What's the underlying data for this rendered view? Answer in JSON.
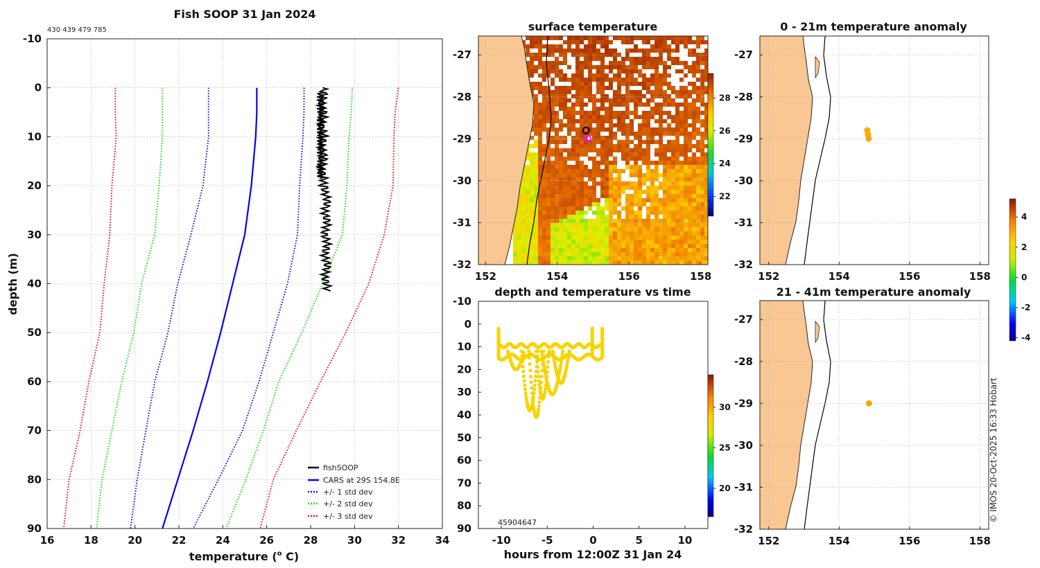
{
  "colors": {
    "cars": "#0000ee",
    "std1": "#1010ee",
    "std2": "#22dd22",
    "std3": "#ee1111",
    "fishsoop": "#000000",
    "land": "#f9c794",
    "anomaly_dot": "#f08c10",
    "time_dots": "#f7d400",
    "grid": "#bbbbbb"
  },
  "figure": {
    "title": "Fish SOOP 31 Jan 2024",
    "ids_text": "430 439 479 785",
    "credit": "© IMOS 20-Oct-2025 16:33 Hobart"
  },
  "chart_data": [
    {
      "id": "profile",
      "type": "line",
      "title": "Fish SOOP 31 Jan 2024",
      "xlabel_pre": "temperature (",
      "xlabel_sup": "o",
      "xlabel_post": " C)",
      "ylabel": "depth (m)",
      "xlim": [
        16,
        34
      ],
      "ylim": [
        -10,
        90
      ],
      "xticks": [
        16,
        18,
        20,
        22,
        24,
        26,
        28,
        30,
        32,
        34
      ],
      "yticks": [
        -10,
        0,
        10,
        20,
        30,
        40,
        50,
        60,
        70,
        80,
        90
      ],
      "depth": [
        0,
        5,
        10,
        20,
        30,
        40,
        50,
        60,
        70,
        80,
        90
      ],
      "series": [
        {
          "name": "CARS at 29S 154.8E",
          "style": "solid",
          "color": "#0000ee",
          "values": [
            25.55,
            25.55,
            25.5,
            25.3,
            25.0,
            24.45,
            23.9,
            23.3,
            22.65,
            21.95,
            21.25
          ]
        },
        {
          "name": "+/- 1 std dev",
          "style": "dotted",
          "color": "#1010ee",
          "values": [
            23.35,
            23.35,
            23.35,
            23.1,
            22.55,
            21.95,
            21.5,
            20.9,
            20.5,
            20.1,
            19.8
          ]
        },
        {
          "name": "+/- 1 std dev",
          "style": "dotted",
          "color": "#1010ee",
          "values": [
            27.7,
            27.7,
            27.65,
            27.5,
            27.4,
            26.95,
            26.3,
            25.65,
            24.9,
            23.8,
            22.65
          ]
        },
        {
          "name": "+/- 2 std dev",
          "style": "dotted",
          "color": "#22dd22",
          "values": [
            21.25,
            21.25,
            21.25,
            21.1,
            20.9,
            20.3,
            19.95,
            19.4,
            18.95,
            18.5,
            18.25
          ]
        },
        {
          "name": "+/- 2 std dev",
          "style": "dotted",
          "color": "#22dd22",
          "values": [
            29.9,
            29.85,
            29.75,
            29.65,
            29.45,
            28.55,
            27.6,
            26.55,
            25.85,
            25.05,
            24.15
          ]
        },
        {
          "name": "+/- 3 std dev",
          "style": "dotted",
          "color": "#ee1111",
          "values": [
            19.1,
            19.1,
            19.15,
            18.95,
            18.85,
            18.6,
            18.4,
            17.9,
            17.5,
            17.0,
            16.75
          ]
        },
        {
          "name": "+/- 3 std dev",
          "style": "dotted",
          "color": "#ee1111",
          "values": [
            32.0,
            31.85,
            31.8,
            31.75,
            31.35,
            30.65,
            29.6,
            28.45,
            27.35,
            26.3,
            25.7
          ]
        }
      ],
      "fishsoop": {
        "name": "fishSOOP",
        "temp_range": [
          28.35,
          28.75
        ],
        "depth_range": [
          0,
          41.5
        ]
      },
      "legend": {
        "placement": "bottom-right",
        "entries": [
          {
            "label": "fishSOOP",
            "color": "#000000",
            "style": "solid"
          },
          {
            "label": "CARS at 29S 154.8E",
            "color": "#0000ee",
            "style": "solid"
          },
          {
            "label": "+/- 1 std dev",
            "color": "#1010ee",
            "style": "dotted"
          },
          {
            "label": "+/- 2 std dev",
            "color": "#22dd22",
            "style": "dotted"
          },
          {
            "label": "+/- 3 std dev",
            "color": "#ee1111",
            "style": "dotted"
          }
        ]
      }
    },
    {
      "id": "sst",
      "type": "heatmap",
      "title": "surface temperature",
      "xlim": [
        151.8,
        158.2
      ],
      "ylim": [
        -32,
        -26.55
      ],
      "xticks": [
        152,
        154,
        156,
        158
      ],
      "yticks": [
        -32,
        -31,
        -30,
        -29,
        -28,
        -27
      ],
      "colorbar": {
        "min": 20.8,
        "max": 29.5,
        "ticks": [
          22,
          24,
          26,
          28
        ]
      },
      "markers": [
        {
          "lon": 154.8,
          "lat": -28.8,
          "color": "#000000",
          "label": "black circle"
        },
        {
          "lon": 154.85,
          "lat": -29.0,
          "color": "#ff00ff",
          "label": "magenta circle"
        }
      ]
    },
    {
      "id": "time_depth",
      "type": "scatter",
      "title": "depth and temperature vs time",
      "xlabel": "hours from 12:00Z 31 Jan 24",
      "xlim": [
        -12.5,
        12.5
      ],
      "ylim": [
        -10,
        90
      ],
      "xticks": [
        -10,
        -5,
        0,
        5,
        10
      ],
      "yticks": [
        -10,
        0,
        10,
        20,
        30,
        40,
        50,
        60,
        70,
        80,
        90
      ],
      "overlap_text": "45904647",
      "colorbar": {
        "min": 16.5,
        "max": 34,
        "ticks": [
          20,
          25,
          30
        ]
      },
      "note": "All points ~28-29 C (yellow); profiles descend from ~10 m to ~41 m between -9 and 0 h"
    },
    {
      "id": "anom1",
      "type": "scatter",
      "title": "0 - 21m temperature anomaly",
      "xlim": [
        151.75,
        158.25
      ],
      "ylim": [
        -32,
        -26.55
      ],
      "xticks": [
        152,
        154,
        156,
        158
      ],
      "yticks": [
        -32,
        -31,
        -30,
        -29,
        -28,
        -27
      ],
      "points": [
        {
          "lon": 154.8,
          "lat": -28.8,
          "anomaly": 2.6
        },
        {
          "lon": 154.82,
          "lat": -28.9,
          "anomaly": 2.6
        },
        {
          "lon": 154.84,
          "lat": -29.0,
          "anomaly": 2.6
        }
      ]
    },
    {
      "id": "anom2",
      "type": "scatter",
      "title": "21 - 41m temperature anomaly",
      "xlim": [
        151.75,
        158.25
      ],
      "ylim": [
        -32,
        -26.55
      ],
      "xticks": [
        152,
        154,
        156,
        158
      ],
      "yticks": [
        -32,
        -31,
        -30,
        -29,
        -28,
        -27
      ],
      "points": [
        {
          "lon": 154.85,
          "lat": -29.0,
          "anomaly": 2.6
        }
      ]
    },
    {
      "id": "anomaly_colorbar",
      "type": "heatmap",
      "min": -4.2,
      "max": 5.2,
      "ticks": [
        -4,
        -2,
        0,
        2,
        4
      ]
    }
  ]
}
